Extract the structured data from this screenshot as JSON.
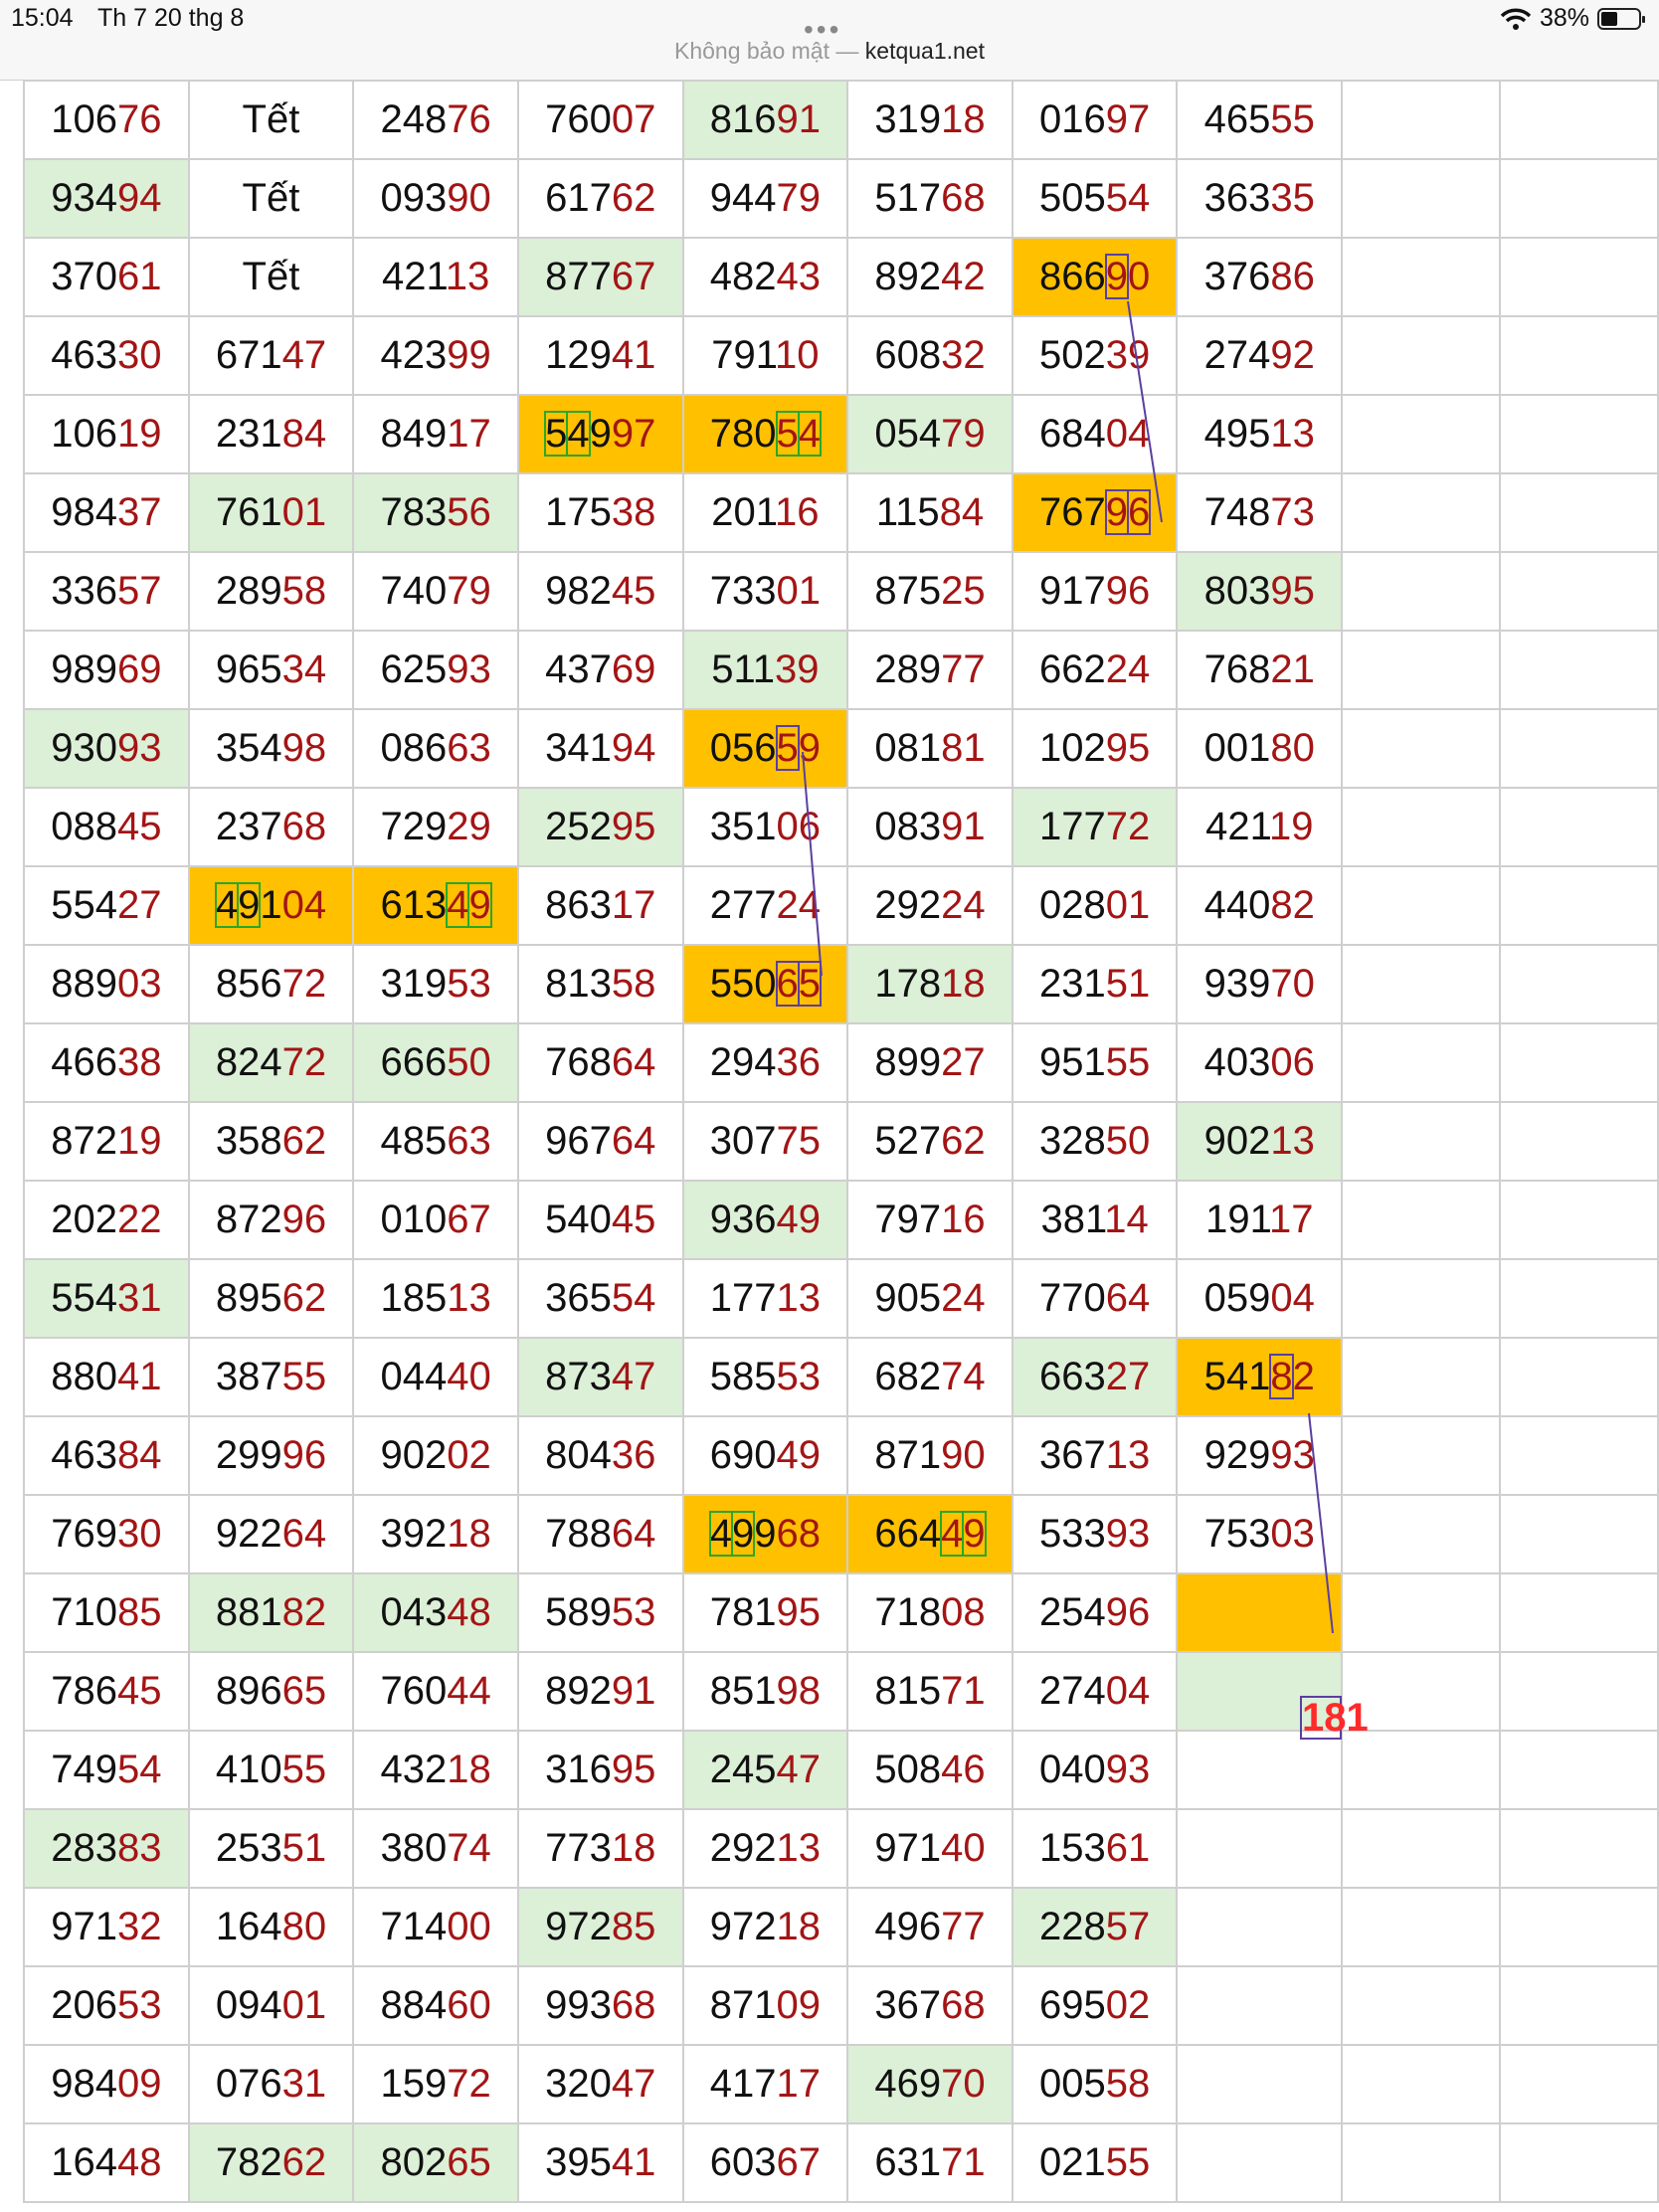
{
  "status_bar": {
    "time": "15:04",
    "date": "Th 7 20 thg 8",
    "battery": "38%",
    "security_text": "Không bảo mật —",
    "host": "ketqua1.net"
  },
  "result_label": "181",
  "colors": {
    "green_cell": "#dcefd7",
    "orange_cell": "#ffc000",
    "red_digits": "#a31515",
    "link_line": "#5b3fa0"
  },
  "rows": [
    [
      [
        "106",
        "76"
      ],
      [
        "Tết",
        ""
      ],
      [
        "248",
        "76"
      ],
      [
        "760",
        "07"
      ],
      [
        "816",
        "91"
      ],
      [
        "319",
        "18"
      ],
      [
        "016",
        "97"
      ],
      [
        "465",
        "55"
      ]
    ],
    [
      [
        "934",
        "94"
      ],
      [
        "Tết",
        ""
      ],
      [
        "093",
        "90"
      ],
      [
        "617",
        "62"
      ],
      [
        "944",
        "79"
      ],
      [
        "517",
        "68"
      ],
      [
        "505",
        "54"
      ],
      [
        "363",
        "35"
      ]
    ],
    [
      [
        "370",
        "61"
      ],
      [
        "Tết",
        ""
      ],
      [
        "421",
        "13"
      ],
      [
        "877",
        "67"
      ],
      [
        "482",
        "43"
      ],
      [
        "892",
        "42"
      ],
      [
        "866",
        "90"
      ],
      [
        "376",
        "86"
      ]
    ],
    [
      [
        "463",
        "30"
      ],
      [
        "671",
        "47"
      ],
      [
        "423",
        "99"
      ],
      [
        "129",
        "41"
      ],
      [
        "791",
        "10"
      ],
      [
        "608",
        "32"
      ],
      [
        "502",
        "39"
      ],
      [
        "274",
        "92"
      ]
    ],
    [
      [
        "106",
        "19"
      ],
      [
        "231",
        "84"
      ],
      [
        "849",
        "17"
      ],
      [
        "549",
        "97"
      ],
      [
        "780",
        "54"
      ],
      [
        "054",
        "79"
      ],
      [
        "684",
        "04"
      ],
      [
        "495",
        "13"
      ]
    ],
    [
      [
        "984",
        "37"
      ],
      [
        "761",
        "01"
      ],
      [
        "783",
        "56"
      ],
      [
        "175",
        "38"
      ],
      [
        "201",
        "16"
      ],
      [
        "115",
        "84"
      ],
      [
        "767",
        "96"
      ],
      [
        "748",
        "73"
      ]
    ],
    [
      [
        "336",
        "57"
      ],
      [
        "289",
        "58"
      ],
      [
        "740",
        "79"
      ],
      [
        "982",
        "45"
      ],
      [
        "733",
        "01"
      ],
      [
        "875",
        "25"
      ],
      [
        "917",
        "96"
      ],
      [
        "803",
        "95"
      ]
    ],
    [
      [
        "989",
        "69"
      ],
      [
        "965",
        "34"
      ],
      [
        "625",
        "93"
      ],
      [
        "437",
        "69"
      ],
      [
        "511",
        "39"
      ],
      [
        "289",
        "77"
      ],
      [
        "662",
        "24"
      ],
      [
        "768",
        "21"
      ]
    ],
    [
      [
        "930",
        "93"
      ],
      [
        "354",
        "98"
      ],
      [
        "086",
        "63"
      ],
      [
        "341",
        "94"
      ],
      [
        "056",
        "59"
      ],
      [
        "081",
        "81"
      ],
      [
        "102",
        "95"
      ],
      [
        "001",
        "80"
      ]
    ],
    [
      [
        "088",
        "45"
      ],
      [
        "237",
        "68"
      ],
      [
        "729",
        "29"
      ],
      [
        "252",
        "95"
      ],
      [
        "351",
        "06"
      ],
      [
        "083",
        "91"
      ],
      [
        "177",
        "72"
      ],
      [
        "421",
        "19"
      ]
    ],
    [
      [
        "554",
        "27"
      ],
      [
        "491",
        "04"
      ],
      [
        "613",
        "49"
      ],
      [
        "863",
        "17"
      ],
      [
        "277",
        "24"
      ],
      [
        "292",
        "24"
      ],
      [
        "028",
        "01"
      ],
      [
        "440",
        "82"
      ]
    ],
    [
      [
        "889",
        "03"
      ],
      [
        "856",
        "72"
      ],
      [
        "319",
        "53"
      ],
      [
        "813",
        "58"
      ],
      [
        "550",
        "65"
      ],
      [
        "178",
        "18"
      ],
      [
        "231",
        "51"
      ],
      [
        "939",
        "70"
      ]
    ],
    [
      [
        "466",
        "38"
      ],
      [
        "824",
        "72"
      ],
      [
        "666",
        "50"
      ],
      [
        "768",
        "64"
      ],
      [
        "294",
        "36"
      ],
      [
        "899",
        "27"
      ],
      [
        "951",
        "55"
      ],
      [
        "403",
        "06"
      ]
    ],
    [
      [
        "872",
        "19"
      ],
      [
        "358",
        "62"
      ],
      [
        "485",
        "63"
      ],
      [
        "967",
        "64"
      ],
      [
        "307",
        "75"
      ],
      [
        "527",
        "62"
      ],
      [
        "328",
        "50"
      ],
      [
        "902",
        "13"
      ]
    ],
    [
      [
        "202",
        "22"
      ],
      [
        "872",
        "96"
      ],
      [
        "010",
        "67"
      ],
      [
        "540",
        "45"
      ],
      [
        "936",
        "49"
      ],
      [
        "797",
        "16"
      ],
      [
        "381",
        "14"
      ],
      [
        "191",
        "17"
      ]
    ],
    [
      [
        "554",
        "31"
      ],
      [
        "895",
        "62"
      ],
      [
        "185",
        "13"
      ],
      [
        "365",
        "54"
      ],
      [
        "177",
        "13"
      ],
      [
        "905",
        "24"
      ],
      [
        "770",
        "64"
      ],
      [
        "059",
        "04"
      ]
    ],
    [
      [
        "880",
        "41"
      ],
      [
        "387",
        "55"
      ],
      [
        "044",
        "40"
      ],
      [
        "873",
        "47"
      ],
      [
        "585",
        "53"
      ],
      [
        "682",
        "74"
      ],
      [
        "663",
        "27"
      ],
      [
        "541",
        "82"
      ]
    ],
    [
      [
        "463",
        "84"
      ],
      [
        "299",
        "96"
      ],
      [
        "902",
        "02"
      ],
      [
        "804",
        "36"
      ],
      [
        "690",
        "49"
      ],
      [
        "871",
        "90"
      ],
      [
        "367",
        "13"
      ],
      [
        "929",
        "93"
      ]
    ],
    [
      [
        "769",
        "30"
      ],
      [
        "922",
        "64"
      ],
      [
        "392",
        "18"
      ],
      [
        "788",
        "64"
      ],
      [
        "499",
        "68"
      ],
      [
        "664",
        "49"
      ],
      [
        "533",
        "93"
      ],
      [
        "753",
        "03"
      ]
    ],
    [
      [
        "710",
        "85"
      ],
      [
        "881",
        "82"
      ],
      [
        "043",
        "48"
      ],
      [
        "589",
        "53"
      ],
      [
        "781",
        "95"
      ],
      [
        "718",
        "08"
      ],
      [
        "254",
        "96"
      ],
      [
        "",
        ""
      ]
    ],
    [
      [
        "786",
        "45"
      ],
      [
        "896",
        "65"
      ],
      [
        "760",
        "44"
      ],
      [
        "892",
        "91"
      ],
      [
        "851",
        "98"
      ],
      [
        "815",
        "71"
      ],
      [
        "274",
        "04"
      ],
      [
        "",
        ""
      ]
    ],
    [
      [
        "749",
        "54"
      ],
      [
        "410",
        "55"
      ],
      [
        "432",
        "18"
      ],
      [
        "316",
        "95"
      ],
      [
        "245",
        "47"
      ],
      [
        "508",
        "46"
      ],
      [
        "040",
        "93"
      ],
      [
        "",
        ""
      ]
    ],
    [
      [
        "283",
        "83"
      ],
      [
        "253",
        "51"
      ],
      [
        "380",
        "74"
      ],
      [
        "773",
        "18"
      ],
      [
        "292",
        "13"
      ],
      [
        "971",
        "40"
      ],
      [
        "153",
        "61"
      ],
      [
        "",
        ""
      ]
    ],
    [
      [
        "971",
        "32"
      ],
      [
        "164",
        "80"
      ],
      [
        "714",
        "00"
      ],
      [
        "972",
        "85"
      ],
      [
        "972",
        "18"
      ],
      [
        "496",
        "77"
      ],
      [
        "228",
        "57"
      ],
      [
        "",
        ""
      ]
    ],
    [
      [
        "206",
        "53"
      ],
      [
        "094",
        "01"
      ],
      [
        "884",
        "60"
      ],
      [
        "993",
        "68"
      ],
      [
        "871",
        "09"
      ],
      [
        "367",
        "68"
      ],
      [
        "695",
        "02"
      ],
      [
        "",
        ""
      ]
    ],
    [
      [
        "984",
        "09"
      ],
      [
        "076",
        "31"
      ],
      [
        "159",
        "72"
      ],
      [
        "320",
        "47"
      ],
      [
        "417",
        "17"
      ],
      [
        "469",
        "70"
      ],
      [
        "005",
        "58"
      ],
      [
        "",
        ""
      ]
    ],
    [
      [
        "164",
        "48"
      ],
      [
        "782",
        "62"
      ],
      [
        "802",
        "65"
      ],
      [
        "395",
        "41"
      ],
      [
        "603",
        "67"
      ],
      [
        "631",
        "71"
      ],
      [
        "021",
        "55"
      ],
      [
        "",
        ""
      ]
    ]
  ]
}
